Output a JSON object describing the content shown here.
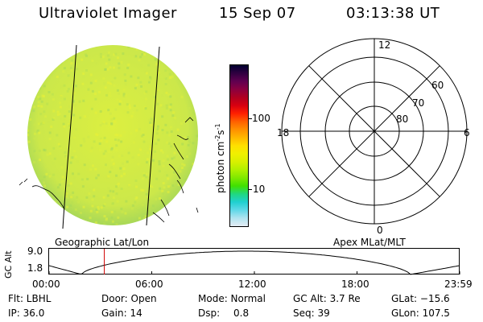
{
  "header": {
    "instrument": "Ultraviolet Imager",
    "date": "15 Sep 07",
    "time": "03:13:38 UT"
  },
  "colorbar": {
    "unit_label": "photon cm",
    "unit_exp1": "-2",
    "unit_mid": "s",
    "unit_exp2": "-1",
    "tick_100": "100",
    "tick_10": "10",
    "colors": [
      "#000030",
      "#300040",
      "#600050",
      "#8a0040",
      "#b00020",
      "#d80010",
      "#ff2000",
      "#ff6000",
      "#ff9000",
      "#ffb800",
      "#ffe000",
      "#f0f000",
      "#d8f000",
      "#b0f000",
      "#80e800",
      "#40e000",
      "#20d880",
      "#20d0d0",
      "#60d8e8",
      "#b0e4f0",
      "#e4ecf4"
    ]
  },
  "left_panel": {
    "caption": "Geographic Lat/Lon"
  },
  "right_panel": {
    "caption": "Apex MLat/MLT",
    "mlt_labels": {
      "top": "12",
      "left": "18",
      "right": "6",
      "bottom": "0"
    },
    "lat_labels": [
      "60",
      "70",
      "80"
    ]
  },
  "altitude_plot": {
    "ylabel": "GC Alt",
    "ytick_top": "9.0",
    "ytick_bottom": "1.8",
    "x_ticks": [
      "00:00",
      "06:00",
      "12:00",
      "18:00",
      "23:59"
    ],
    "marker_time_hours": 3.227,
    "line_color": "#000000",
    "marker_color": "#d00000"
  },
  "info": {
    "flt": "Flt: LBHL",
    "door": "Door: Open",
    "mode": "Mode: Normal",
    "gc_alt": "GC Alt: 3.7 Re",
    "glat": "GLat: −15.6",
    "ip": "IP: 36.0",
    "gain": "Gain: 14",
    "dsp_label": "Dsp:",
    "dsp_value": "0.8",
    "seq": "Seq: 39",
    "glon": "GLon: 107.5"
  },
  "colors": {
    "disk_base": "#cce84a",
    "disk_edge": "#a8d858",
    "disk_speckle": "#dcef40"
  }
}
